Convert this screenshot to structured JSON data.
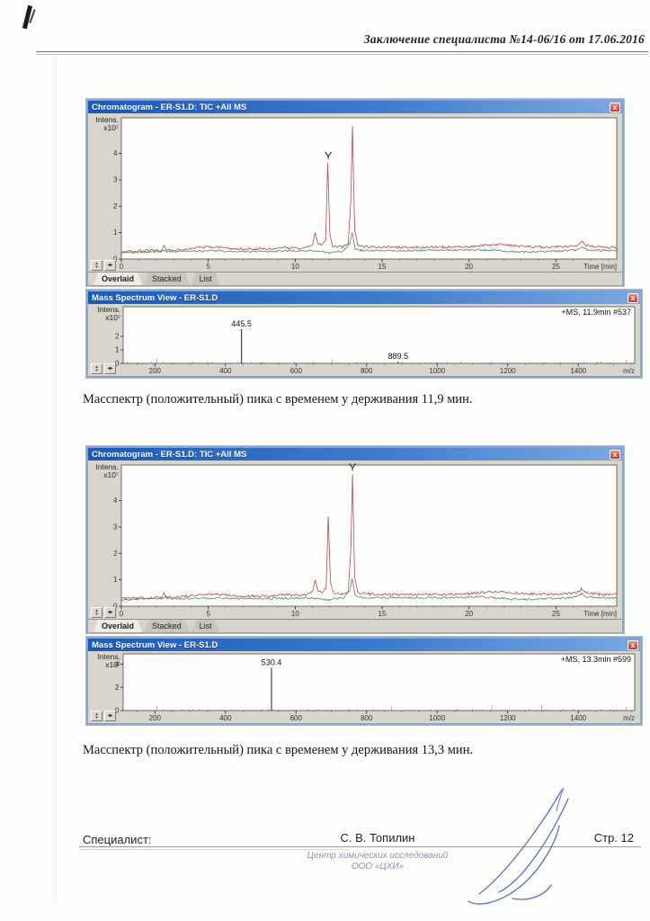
{
  "page": {
    "header": "Заключение специалиста №14-06/16 от 17.06.2016",
    "caption1": "Масспектр (положительный) пика с временем у держивания 11,9 мин.",
    "caption2": "Масспектр (положительный) пика с временем у держивания 13,3 мин.",
    "footer": {
      "specialist_label": "Специалист:",
      "specialist_name": "С. В. Топилин",
      "stamp_line1": "Центр химических исследований",
      "stamp_line2": "ООО «ЦХИ»",
      "page_number": "Стр. 12"
    }
  },
  "windows": {
    "chromatogram_title": "Chromatogram - ER-S1.D: TIC +All MS",
    "mass_spectrum_title": "Mass Spectrum View - ER-S1.D",
    "close_glyph": "x",
    "tabs": [
      "Overlaid",
      "Stacked",
      "List"
    ],
    "y_axis_label_line1": "Intens.",
    "y_axis_label_line2": "x10⁷",
    "ms1_annotation": "+MS, 11.9min #537",
    "ms2_annotation": "+MS, 13.3min #599",
    "spinner_up": "▴",
    "spinner_down": "▾",
    "spinner_leftright": "◂▸"
  },
  "colors": {
    "titlebar_blue": "#2a62c2",
    "close_red": "#d9413c",
    "chromatogram_trace_red": "#a84a56",
    "chromatogram_trace_green": "#4c8a57",
    "window_body_gray": "#d8d5cd",
    "signature_ink_blue": "#4054b8"
  },
  "chart_data": [
    {
      "id": "chrom1",
      "type": "line",
      "title": "Chromatogram - ER-S1.D: TIC +All MS",
      "xlabel": "Time [min]",
      "ylabel": "Intens. x10⁷",
      "xlim": [
        0,
        28.5
      ],
      "ylim": [
        0,
        5.35
      ],
      "xticks": [
        0,
        5,
        10,
        15,
        20,
        25
      ],
      "x_minor_step": 1,
      "yticks": [
        0,
        1,
        2,
        3,
        4
      ],
      "grid": false,
      "legend": "none",
      "marker_x": 11.9,
      "series": [
        {
          "name": "TIC +All MS (red trace)",
          "color": "#a84a56",
          "noise": 0.045,
          "points": [
            [
              0,
              0.3
            ],
            [
              0.8,
              0.31
            ],
            [
              1.6,
              0.32
            ],
            [
              2.3,
              0.33
            ],
            [
              2.5,
              0.35
            ],
            [
              2.8,
              0.33
            ],
            [
              3.6,
              0.37
            ],
            [
              4.3,
              0.43
            ],
            [
              5.0,
              0.46
            ],
            [
              5.7,
              0.44
            ],
            [
              6.4,
              0.39
            ],
            [
              7.5,
              0.38
            ],
            [
              8.6,
              0.39
            ],
            [
              9.3,
              0.44
            ],
            [
              9.8,
              0.41
            ],
            [
              10.6,
              0.43
            ],
            [
              11.0,
              0.55
            ],
            [
              11.15,
              1.0
            ],
            [
              11.3,
              0.6
            ],
            [
              11.55,
              0.52
            ],
            [
              11.75,
              0.7
            ],
            [
              11.87,
              3.65
            ],
            [
              12.0,
              0.9
            ],
            [
              12.15,
              0.5
            ],
            [
              12.7,
              0.46
            ],
            [
              13.05,
              0.55
            ],
            [
              13.2,
              2.2
            ],
            [
              13.3,
              5.05
            ],
            [
              13.42,
              1.1
            ],
            [
              13.6,
              0.52
            ],
            [
              14.3,
              0.46
            ],
            [
              15.5,
              0.44
            ],
            [
              17,
              0.44
            ],
            [
              18.5,
              0.45
            ],
            [
              20,
              0.47
            ],
            [
              20.9,
              0.53
            ],
            [
              21.8,
              0.55
            ],
            [
              22.6,
              0.5
            ],
            [
              23.6,
              0.47
            ],
            [
              24.6,
              0.45
            ],
            [
              25.6,
              0.47
            ],
            [
              26.2,
              0.52
            ],
            [
              26.5,
              0.66
            ],
            [
              26.75,
              0.52
            ],
            [
              27.5,
              0.45
            ],
            [
              28.5,
              0.44
            ]
          ]
        },
        {
          "name": "secondary trace (green)",
          "color": "#4c8a57",
          "noise": 0.035,
          "points": [
            [
              0,
              0.25
            ],
            [
              1,
              0.26
            ],
            [
              2.3,
              0.28
            ],
            [
              2.45,
              0.52
            ],
            [
              2.6,
              0.29
            ],
            [
              3.5,
              0.28
            ],
            [
              4.5,
              0.3
            ],
            [
              5.5,
              0.31
            ],
            [
              6.5,
              0.29
            ],
            [
              8,
              0.29
            ],
            [
              9.5,
              0.3
            ],
            [
              10.5,
              0.31
            ],
            [
              11.2,
              0.3
            ],
            [
              11.6,
              0.29
            ],
            [
              11.95,
              0.22
            ],
            [
              12.3,
              0.29
            ],
            [
              12.8,
              0.3
            ],
            [
              13.15,
              0.6
            ],
            [
              13.28,
              1.0
            ],
            [
              13.45,
              0.38
            ],
            [
              13.8,
              0.33
            ],
            [
              15,
              0.32
            ],
            [
              17,
              0.32
            ],
            [
              19,
              0.33
            ],
            [
              20.5,
              0.35
            ],
            [
              21.5,
              0.33
            ],
            [
              22.5,
              0.28
            ],
            [
              23.2,
              0.26
            ],
            [
              24.2,
              0.28
            ],
            [
              25.2,
              0.3
            ],
            [
              26.1,
              0.33
            ],
            [
              26.5,
              0.48
            ],
            [
              26.8,
              0.34
            ],
            [
              27.8,
              0.32
            ],
            [
              28.5,
              0.31
            ]
          ]
        }
      ]
    },
    {
      "id": "ms1",
      "type": "stick",
      "title": "Mass Spectrum View - ER-S1.D",
      "annotation": "+MS, 11.9min #537",
      "xlabel": "m/z",
      "ylabel": "Intens. x10⁷",
      "xlim": [
        110,
        1560
      ],
      "ylim": [
        0,
        4.2
      ],
      "xticks": [
        200,
        400,
        600,
        800,
        1000,
        1200,
        1400
      ],
      "x_minor_step": 50,
      "yticks": [
        0,
        1,
        2
      ],
      "grid": false,
      "noise_level": 0.04,
      "peaks": [
        {
          "mz": 445.5,
          "intensity": 2.55,
          "label": "445.5"
        },
        {
          "mz": 889.5,
          "intensity": 0.14,
          "label": "889.5"
        }
      ]
    },
    {
      "id": "chrom2",
      "type": "line",
      "title": "Chromatogram - ER-S1.D: TIC +All MS",
      "xlabel": "Time [min]",
      "ylabel": "Intens. x10⁷",
      "xlim": [
        0,
        28.5
      ],
      "ylim": [
        0,
        5.35
      ],
      "xticks": [
        0,
        5,
        10,
        15,
        20,
        25
      ],
      "x_minor_step": 1,
      "yticks": [
        0,
        1,
        2,
        3,
        4
      ],
      "grid": false,
      "legend": "none",
      "marker_x": 13.3,
      "series": [
        {
          "name": "TIC +All MS (red trace)",
          "color": "#a84a56",
          "noise": 0.045,
          "points": [
            [
              0,
              0.3
            ],
            [
              0.9,
              0.31
            ],
            [
              1.7,
              0.32
            ],
            [
              2.3,
              0.33
            ],
            [
              2.5,
              0.35
            ],
            [
              2.9,
              0.33
            ],
            [
              3.7,
              0.38
            ],
            [
              4.4,
              0.43
            ],
            [
              5.1,
              0.46
            ],
            [
              5.8,
              0.44
            ],
            [
              6.5,
              0.39
            ],
            [
              7.6,
              0.38
            ],
            [
              8.7,
              0.39
            ],
            [
              9.3,
              0.45
            ],
            [
              9.9,
              0.41
            ],
            [
              10.6,
              0.43
            ],
            [
              11.0,
              0.55
            ],
            [
              11.15,
              1.0
            ],
            [
              11.3,
              0.6
            ],
            [
              11.55,
              0.52
            ],
            [
              11.78,
              0.7
            ],
            [
              11.9,
              3.4
            ],
            [
              12.03,
              0.9
            ],
            [
              12.2,
              0.5
            ],
            [
              12.7,
              0.46
            ],
            [
              13.05,
              0.55
            ],
            [
              13.2,
              2.1
            ],
            [
              13.3,
              5.0
            ],
            [
              13.42,
              1.1
            ],
            [
              13.6,
              0.52
            ],
            [
              14.3,
              0.46
            ],
            [
              15.5,
              0.44
            ],
            [
              17,
              0.44
            ],
            [
              18.5,
              0.45
            ],
            [
              20,
              0.47
            ],
            [
              20.9,
              0.53
            ],
            [
              21.8,
              0.55
            ],
            [
              22.6,
              0.5
            ],
            [
              23.6,
              0.47
            ],
            [
              24.6,
              0.45
            ],
            [
              25.6,
              0.47
            ],
            [
              26.2,
              0.52
            ],
            [
              26.5,
              0.66
            ],
            [
              26.75,
              0.52
            ],
            [
              27.5,
              0.45
            ],
            [
              28.5,
              0.44
            ]
          ]
        },
        {
          "name": "secondary trace (green)",
          "color": "#4c8a57",
          "noise": 0.035,
          "points": [
            [
              0,
              0.25
            ],
            [
              1,
              0.26
            ],
            [
              2.3,
              0.28
            ],
            [
              2.45,
              0.52
            ],
            [
              2.6,
              0.29
            ],
            [
              3.5,
              0.28
            ],
            [
              4.5,
              0.3
            ],
            [
              5.5,
              0.31
            ],
            [
              6.5,
              0.29
            ],
            [
              8,
              0.29
            ],
            [
              9.5,
              0.3
            ],
            [
              10.5,
              0.31
            ],
            [
              11.2,
              0.3
            ],
            [
              11.6,
              0.29
            ],
            [
              11.95,
              0.22
            ],
            [
              12.3,
              0.29
            ],
            [
              12.8,
              0.3
            ],
            [
              13.15,
              0.6
            ],
            [
              13.28,
              1.05
            ],
            [
              13.45,
              0.38
            ],
            [
              13.8,
              0.33
            ],
            [
              15,
              0.32
            ],
            [
              17,
              0.32
            ],
            [
              19,
              0.33
            ],
            [
              20.5,
              0.35
            ],
            [
              21.5,
              0.33
            ],
            [
              22.5,
              0.28
            ],
            [
              23.2,
              0.26
            ],
            [
              24.2,
              0.28
            ],
            [
              25.2,
              0.3
            ],
            [
              26.1,
              0.33
            ],
            [
              26.5,
              0.48
            ],
            [
              26.8,
              0.34
            ],
            [
              27.8,
              0.32
            ],
            [
              28.5,
              0.31
            ]
          ]
        }
      ]
    },
    {
      "id": "ms2",
      "type": "stick",
      "title": "Mass Spectrum View - ER-S1.D",
      "annotation": "+MS, 13.3min #599",
      "xlabel": "m/z",
      "ylabel": "Intens. x10⁷",
      "xlim": [
        110,
        1560
      ],
      "ylim": [
        0,
        4.9
      ],
      "xticks": [
        200,
        400,
        600,
        800,
        1000,
        1200,
        1400
      ],
      "x_minor_step": 50,
      "yticks": [
        0,
        2,
        4
      ],
      "grid": false,
      "noise_level": 0.035,
      "peaks": [
        {
          "mz": 530.4,
          "intensity": 3.7,
          "label": "530.4"
        },
        {
          "mz": 1058,
          "intensity": 0.1,
          "label": ""
        }
      ]
    }
  ]
}
